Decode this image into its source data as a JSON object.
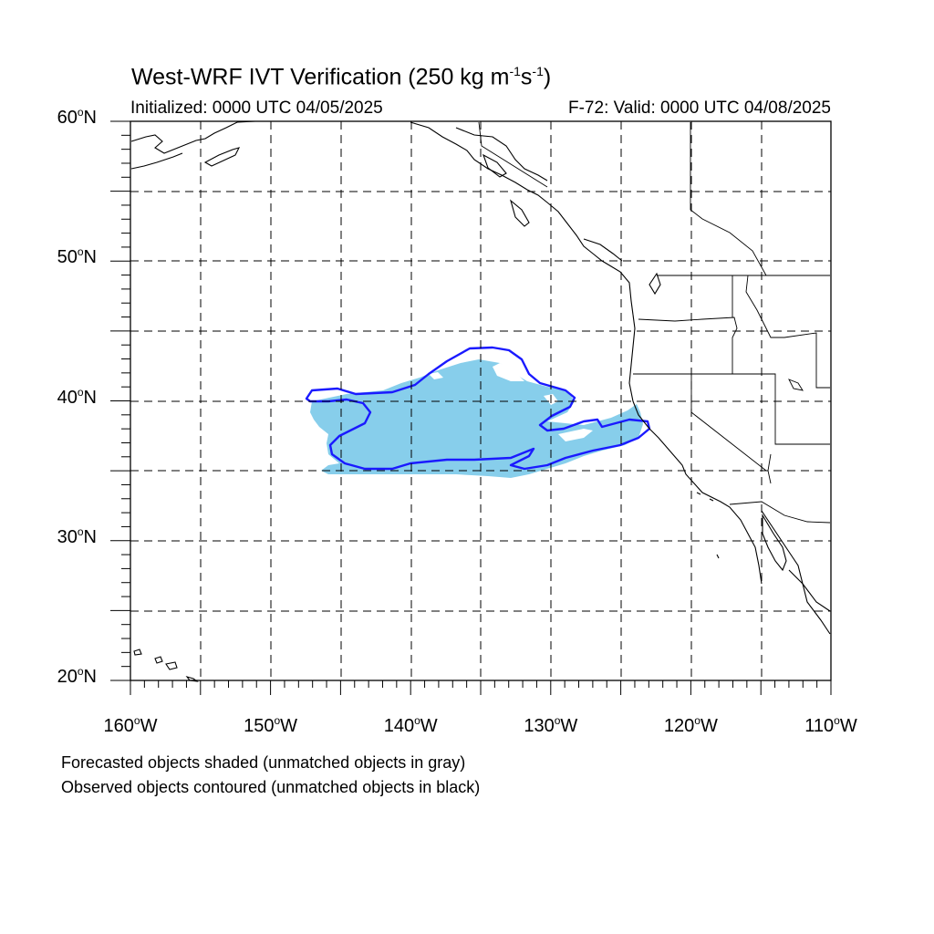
{
  "title": {
    "prefix": "West-WRF IVT Verification (250 kg m",
    "exp1": "-1",
    "mid": "s",
    "exp2": "-1",
    "suffix": ")"
  },
  "init_text": "Initialized: 0000 UTC 04/05/2025",
  "valid_text": "F-72: Valid: 0000 UTC 04/08/2025",
  "map": {
    "lon_range": [
      -160,
      -110
    ],
    "lat_range": [
      20,
      60
    ],
    "grid_lines": "dashed every 5 degrees",
    "lat_labels": [
      {
        "value": 60,
        "text": "60",
        "suffix": "N"
      },
      {
        "value": 50,
        "text": "50",
        "suffix": "N"
      },
      {
        "value": 40,
        "text": "40",
        "suffix": "N"
      },
      {
        "value": 30,
        "text": "30",
        "suffix": "N"
      },
      {
        "value": 20,
        "text": "20",
        "suffix": "N"
      }
    ],
    "lon_labels": [
      {
        "value": -160,
        "text": "160",
        "suffix": "W"
      },
      {
        "value": -150,
        "text": "150",
        "suffix": "W"
      },
      {
        "value": -140,
        "text": "140",
        "suffix": "W"
      },
      {
        "value": -130,
        "text": "130",
        "suffix": "W"
      },
      {
        "value": -120,
        "text": "120",
        "suffix": "W"
      },
      {
        "value": -110,
        "text": "110",
        "suffix": "W"
      }
    ],
    "colors": {
      "forecast_fill": "#87ceeb",
      "observed_contour": "#1a1aff",
      "coastline": "#000000",
      "grid": "#000000"
    }
  },
  "footnotes": [
    "Forecasted objects shaded (unmatched objects in gray)",
    "Observed objects contoured (unmatched objects in black)"
  ]
}
